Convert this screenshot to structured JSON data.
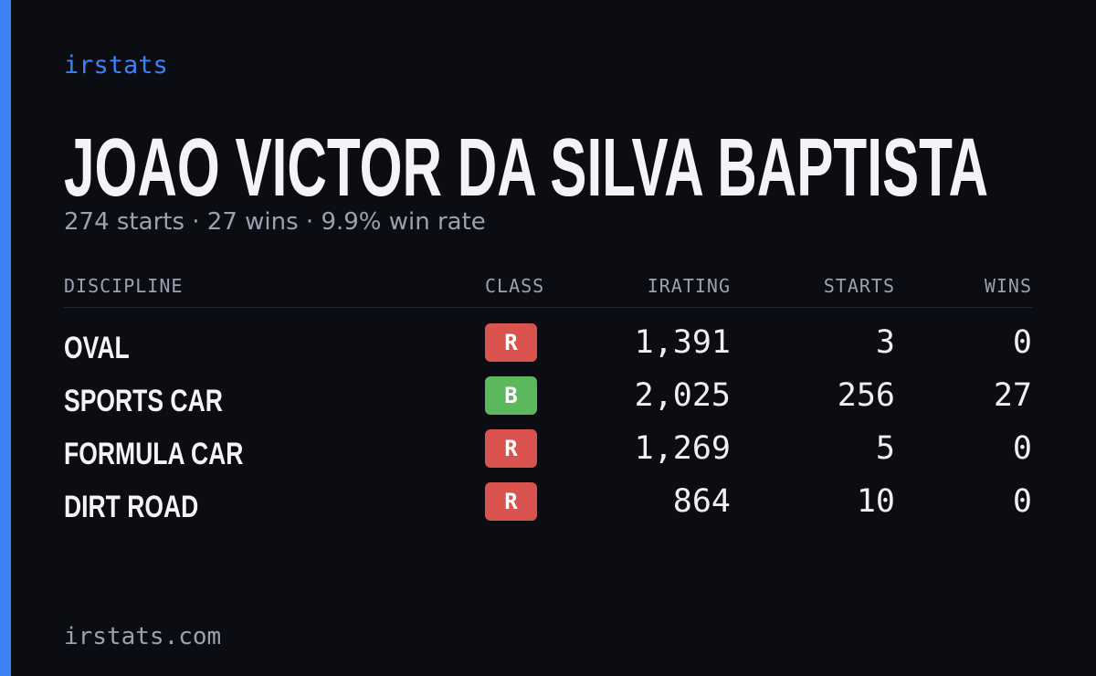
{
  "brand": "irstats",
  "driver": {
    "name": "JOAO VICTOR DA SILVA BAPTISTA",
    "summary": "274 starts · 27 wins · 9.9% win rate"
  },
  "table": {
    "headers": [
      "DISCIPLINE",
      "CLASS",
      "IRATING",
      "STARTS",
      "WINS"
    ],
    "rows": [
      [
        "OVAL",
        "R",
        "1,391",
        "3",
        "0"
      ],
      [
        "SPORTS CAR",
        "B",
        "2,025",
        "256",
        "27"
      ],
      [
        "FORMULA CAR",
        "R",
        "1,269",
        "5",
        "0"
      ],
      [
        "DIRT ROAD",
        "R",
        "864",
        "10",
        "0"
      ]
    ],
    "class_colors": {
      "R": "#d9534f",
      "B": "#5cb85c"
    }
  },
  "footer": "irstats.com"
}
